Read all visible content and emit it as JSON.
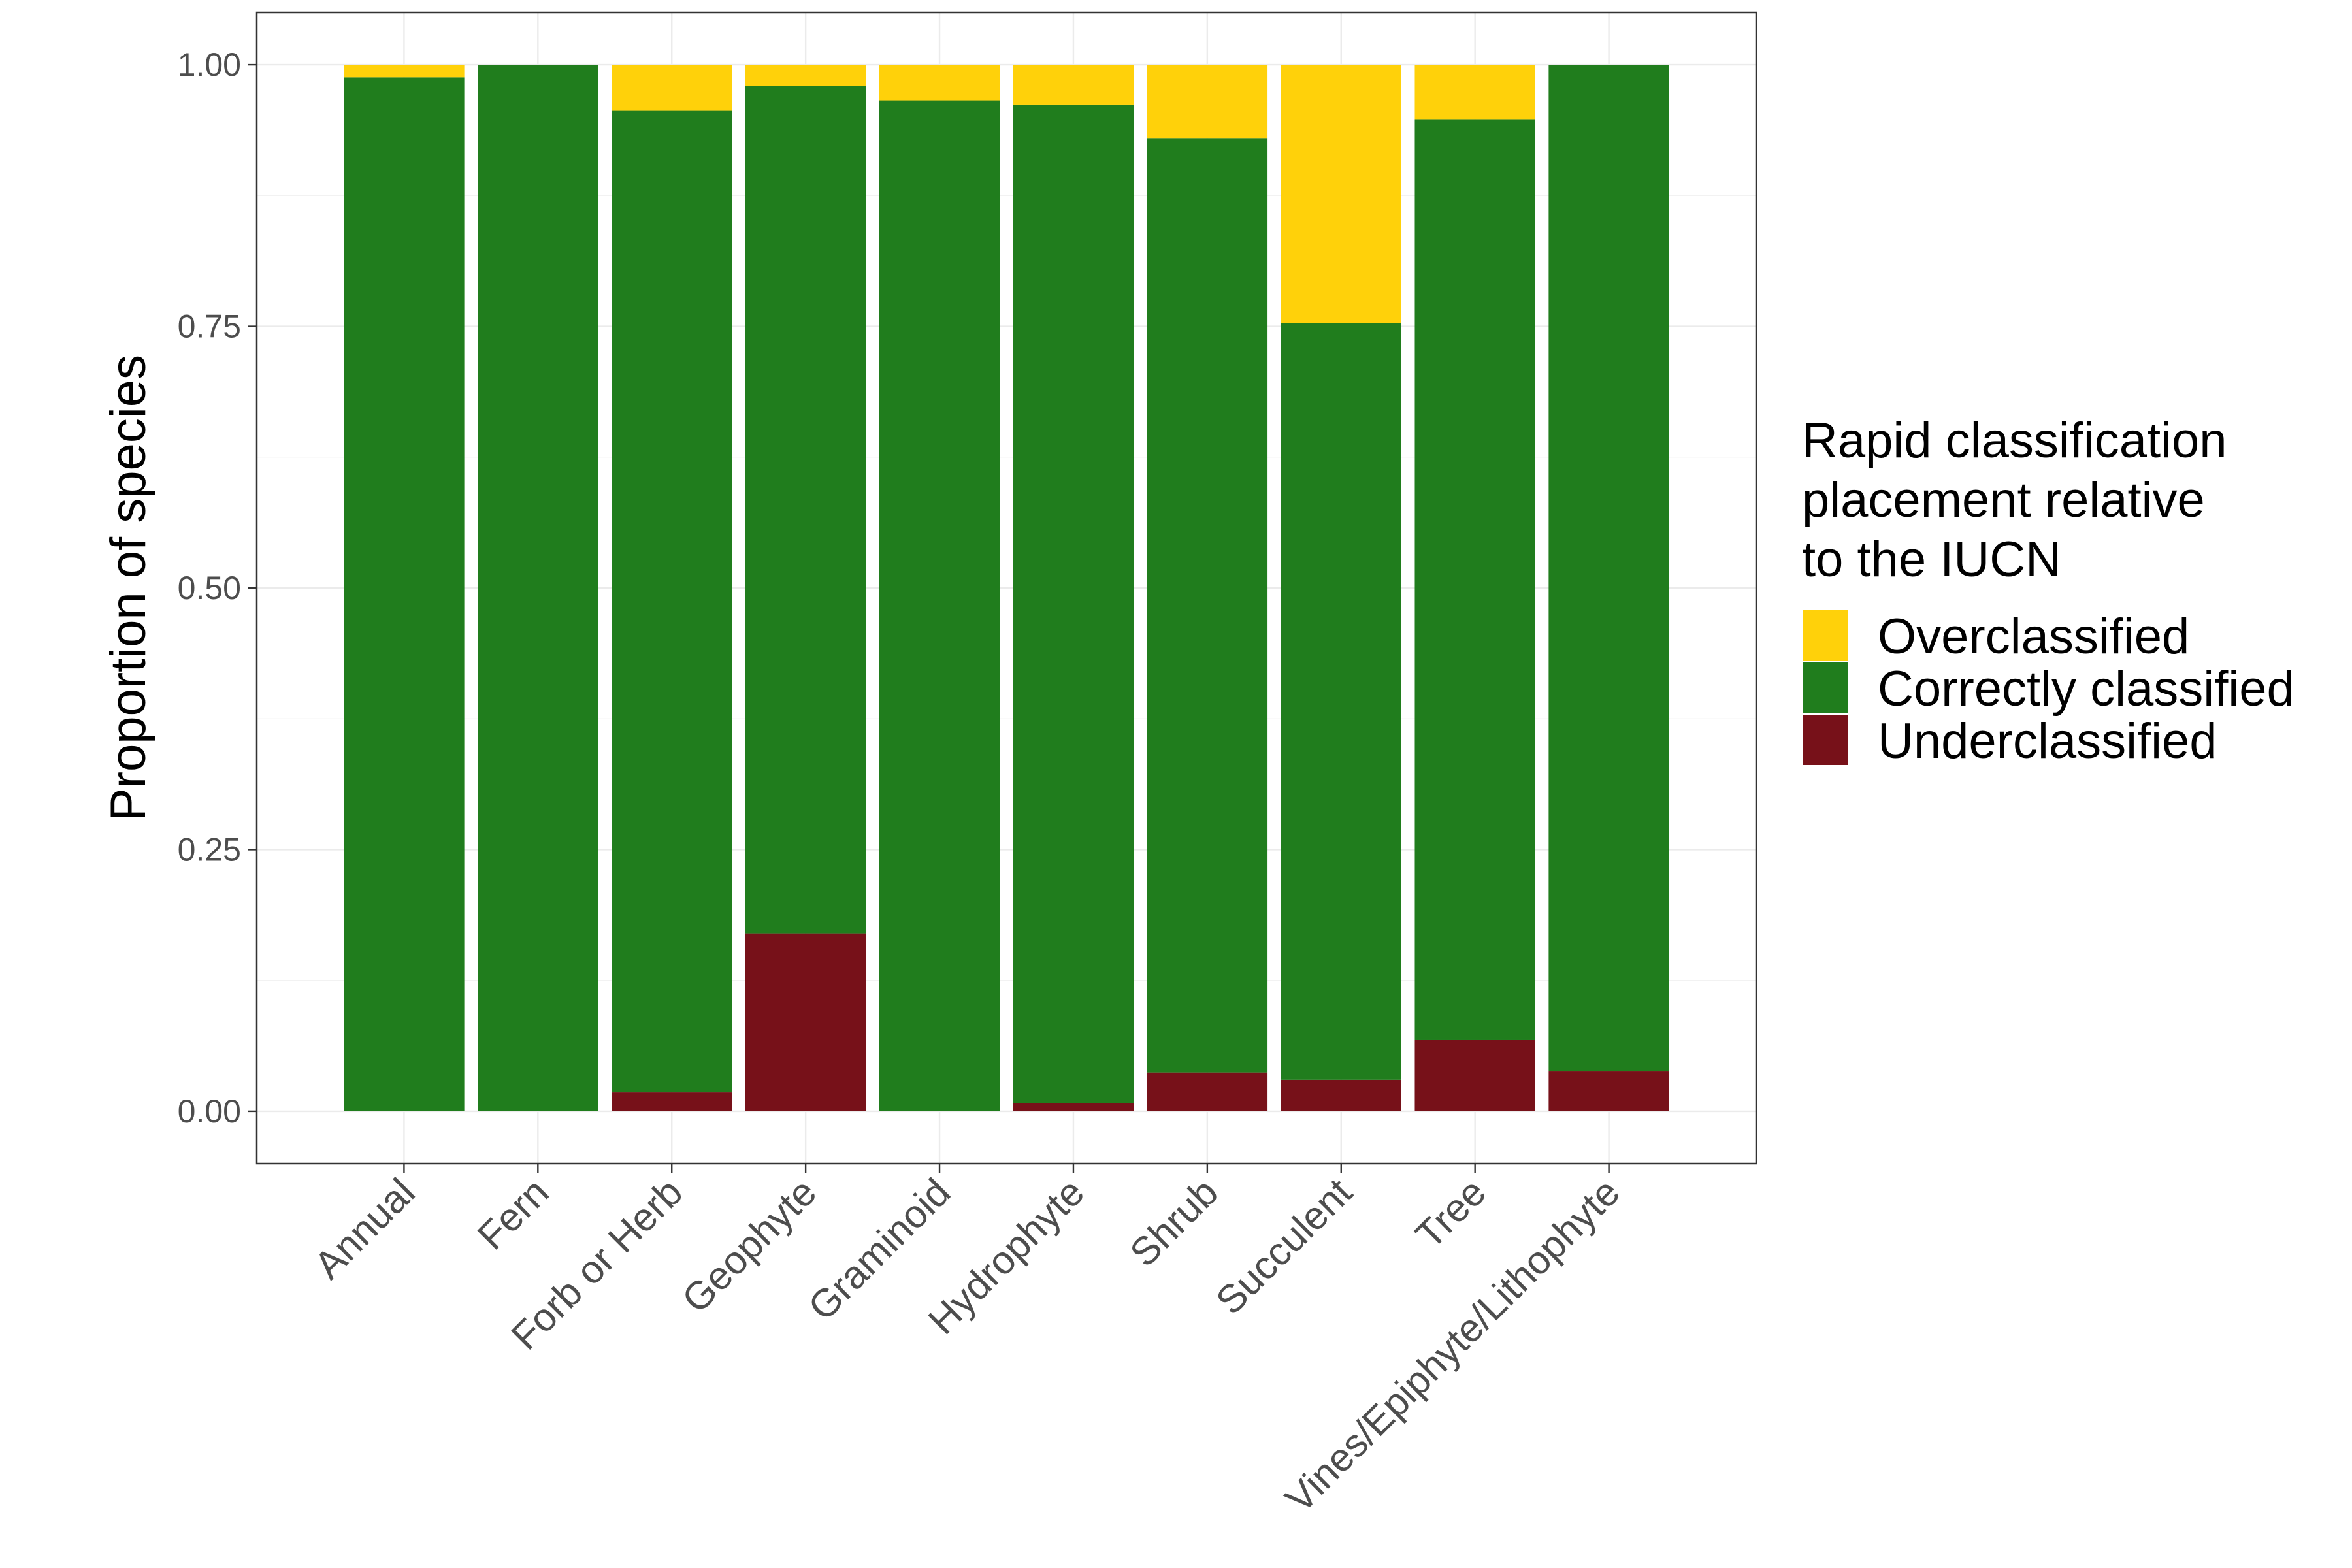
{
  "chart_data": {
    "type": "bar",
    "stacked": true,
    "categories": [
      "Annual",
      "Fern",
      "Forb or Herb",
      "Geophyte",
      "Graminoid",
      "Hydrophyte",
      "Shrub",
      "Succulent",
      "Tree",
      "Vines/Epiphyte/Lithophyte"
    ],
    "series": [
      {
        "name": "Underclassified",
        "color": "#771119",
        "values": [
          0.0,
          0.0,
          0.018,
          0.17,
          0.0,
          0.008,
          0.037,
          0.03,
          0.068,
          0.038
        ]
      },
      {
        "name": "Correctly classified",
        "color": "#207D1D",
        "values": [
          0.988,
          1.0,
          0.938,
          0.81,
          0.966,
          0.954,
          0.893,
          0.723,
          0.88,
          0.962
        ]
      },
      {
        "name": "Overclassified",
        "color": "#FFD10A",
        "values": [
          0.012,
          0.0,
          0.044,
          0.02,
          0.034,
          0.038,
          0.07,
          0.247,
          0.052,
          0.0
        ]
      }
    ],
    "title": "",
    "xlabel": "",
    "ylabel": "Proportion of species",
    "ylim": [
      -0.05,
      1.05
    ],
    "yticks": [
      0,
      0.25,
      0.5,
      0.75,
      1.0
    ],
    "ytick_labels": [
      "0.00",
      "0.25",
      "0.50",
      "0.75",
      "1.00"
    ],
    "grid": true,
    "legend": {
      "title": [
        "Rapid classification",
        "placement relative",
        "to the IUCN"
      ],
      "order": [
        "Overclassified",
        "Correctly classified",
        "Underclassified"
      ],
      "placement": "right"
    }
  }
}
